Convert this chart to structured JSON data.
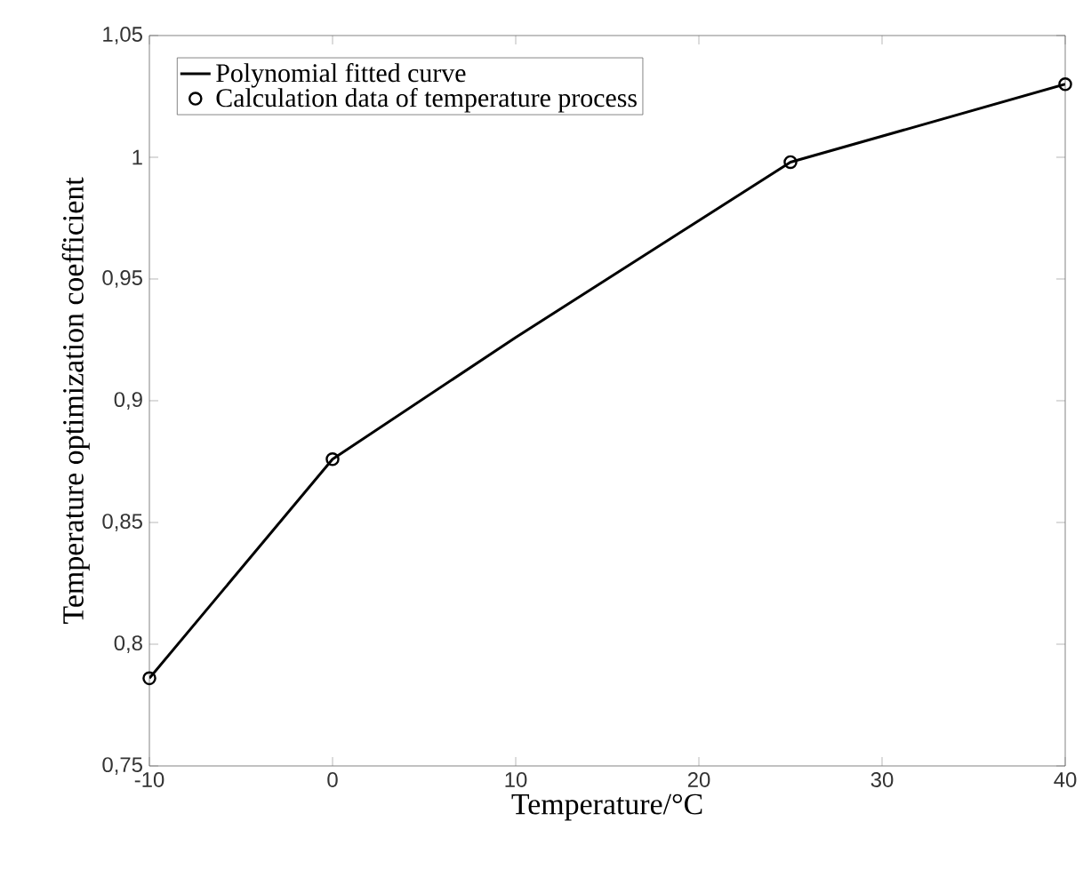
{
  "chart_data": {
    "type": "line",
    "xlabel": "Temperature/°C",
    "ylabel": "Temperature optimization coefficient",
    "xlim": [
      -10,
      40
    ],
    "xticks": [
      -10,
      0,
      10,
      20,
      30,
      40
    ],
    "ylim": [
      0.75,
      1.05
    ],
    "yticks": [
      {
        "value": 0.75,
        "label": "0,75"
      },
      {
        "value": 0.8,
        "label": "0,8"
      },
      {
        "value": 0.85,
        "label": "0,85"
      },
      {
        "value": 0.9,
        "label": "0,9"
      },
      {
        "value": 0.95,
        "label": "0,95"
      },
      {
        "value": 1,
        "label": "1"
      },
      {
        "value": 1.05,
        "label": "1,05"
      }
    ],
    "legend": "top left",
    "series": [
      {
        "name": "Polynomial fitted curve",
        "color": "#000000",
        "marker": "none",
        "line_style": "solid",
        "x": [
          -10,
          0,
          10,
          25,
          40
        ],
        "values": [
          0.786,
          0.876,
          0.926,
          0.998,
          1.03
        ]
      },
      {
        "name": "Calculation data of temperature process",
        "type": "scatter",
        "color": "#000000",
        "marker": "circle",
        "x": [
          -10,
          0,
          25,
          40
        ],
        "values": [
          0.786,
          0.876,
          0.998,
          1.03
        ]
      }
    ]
  }
}
